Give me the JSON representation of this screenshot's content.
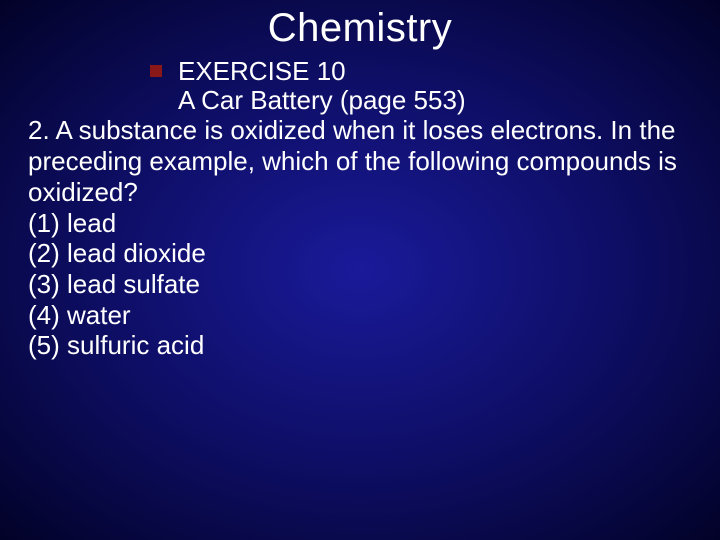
{
  "title": "Chemistry",
  "exercise_label": "EXERCISE 10",
  "subtitle": "A Car Battery (page 553)",
  "question": "2.   A substance is oxidized when it loses electrons. In the preceding example, which of the following compounds is oxidized?",
  "options": [
    "(1) lead",
    "(2) lead dioxide",
    "(3) lead sulfate",
    "(4) water",
    "(5) sulfuric acid"
  ],
  "colors": {
    "text": "#ffffff",
    "bullet": "#8a1818",
    "bg_center": "#1a1a9a",
    "bg_edge": "#020228"
  },
  "typography": {
    "title_fontsize": 40,
    "body_fontsize": 26,
    "font_family": "Arial"
  }
}
